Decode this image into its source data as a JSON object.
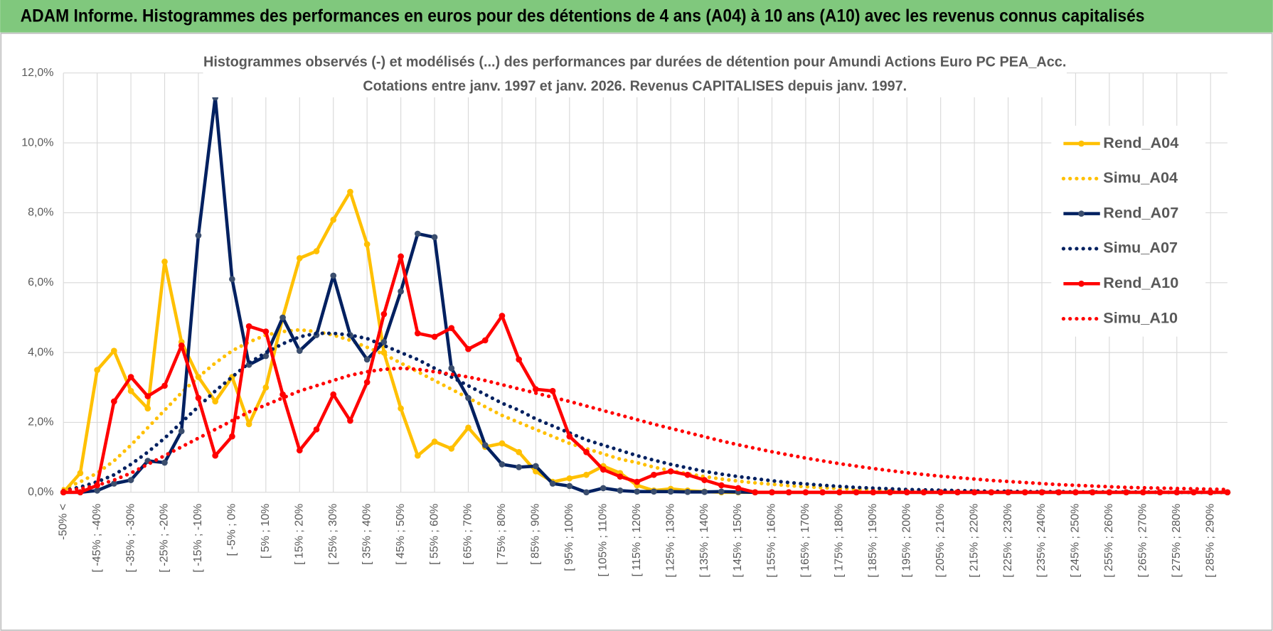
{
  "chart_data": {
    "type": "line",
    "title": "ADAM Informe. Histogrammes des performances en euros pour des détentions de 4 ans (A04) à 10 ans (A10) avec les revenus connus capitalisés",
    "subtitle": [
      "Histogrammes observés (-) et modélisés (...) des performances par durées de détention pour Amundi Actions Euro PC PEA_Acc.",
      "Cotations entre janv. 1997 et janv. 2026. Revenus CAPITALISES depuis janv. 1997."
    ],
    "categories": [
      "-50% <",
      null,
      "[ -45% ; -40%",
      null,
      "[ -35% ; -30%",
      null,
      "[ -25% ; -20%",
      null,
      "[ -15% ; -10%",
      null,
      "[ -5% ; 0%",
      null,
      "[ 5% ; 10%",
      null,
      "[ 15% ; 20%",
      null,
      "[ 25% ; 30%",
      null,
      "[ 35% ; 40%",
      null,
      "[ 45% ; 50%",
      null,
      "[ 55% ; 60%",
      null,
      "[ 65% ; 70%",
      null,
      "[ 75% ; 80%",
      null,
      "[ 85% ; 90%",
      null,
      "[ 95% ; 100%",
      null,
      "[ 105% ; 110%",
      null,
      "[ 115% ; 120%",
      null,
      "[ 125% ; 130%",
      null,
      "[ 135% ; 140%",
      null,
      "[ 145% ; 150%",
      null,
      "[ 155% ; 160%",
      null,
      "[ 165% ; 170%",
      null,
      "[ 175% ; 180%",
      null,
      "[ 185% ; 190%",
      null,
      "[ 195% ; 200%",
      null,
      "[ 205% ; 210%",
      null,
      "[ 215% ; 220%",
      null,
      "[ 225% ; 230%",
      null,
      "[ 235% ; 240%",
      null,
      "[ 245% ; 250%",
      null,
      "[ 255% ; 260%",
      null,
      "[ 265% ; 270%",
      null,
      "[ 275% ; 280%",
      null,
      "[ 285% ; 290%",
      null
    ],
    "ylim": [
      0,
      12
    ],
    "yticks": [
      {
        "value": 0,
        "label": "0,0%"
      },
      {
        "value": 2,
        "label": "2,0%"
      },
      {
        "value": 4,
        "label": "4,0%"
      },
      {
        "value": 6,
        "label": "6,0%"
      },
      {
        "value": 8,
        "label": "8,0%"
      },
      {
        "value": 10,
        "label": "10,0%"
      },
      {
        "value": 12,
        "label": "12,0%"
      }
    ],
    "grid": true,
    "legend": "right",
    "series": [
      {
        "name": "Rend_A04",
        "color": "#ffc000",
        "line_style": "solid",
        "markers": true,
        "values": [
          0,
          0.55,
          3.5,
          4.05,
          2.9,
          2.4,
          6.6,
          4.3,
          3.3,
          2.6,
          3.3,
          1.95,
          3.0,
          5.0,
          6.7,
          6.9,
          7.8,
          8.6,
          7.1,
          4.0,
          2.4,
          1.05,
          1.45,
          1.25,
          1.85,
          1.3,
          1.4,
          1.15,
          0.6,
          0.3,
          0.4,
          0.5,
          0.75,
          0.55,
          0.2,
          0.05,
          0.1,
          0.05,
          0.02,
          0,
          0,
          0,
          0,
          0,
          0,
          0,
          0,
          0,
          0,
          0,
          0,
          0,
          0,
          0,
          0,
          0,
          0,
          0,
          0,
          0,
          0,
          0,
          0,
          0,
          0,
          0,
          0,
          0,
          0,
          0
        ]
      },
      {
        "name": "Simu_A04",
        "color": "#ffc000",
        "line_style": "dotted",
        "markers": false,
        "values": [
          0.1,
          0.3,
          0.55,
          0.9,
          1.35,
          1.85,
          2.35,
          2.85,
          3.3,
          3.7,
          4.05,
          4.3,
          4.5,
          4.6,
          4.65,
          4.6,
          4.5,
          4.35,
          4.15,
          3.95,
          3.7,
          3.45,
          3.2,
          2.95,
          2.7,
          2.45,
          2.2,
          2.0,
          1.8,
          1.6,
          1.4,
          1.25,
          1.1,
          0.95,
          0.85,
          0.72,
          0.62,
          0.53,
          0.45,
          0.38,
          0.32,
          0.27,
          0.23,
          0.19,
          0.16,
          0.13,
          0.11,
          0.09,
          0.08,
          0.06,
          0.05,
          0.04,
          0.03,
          0.03,
          0.02,
          0.02,
          0.02,
          0.01,
          0.01,
          0.01,
          0.01,
          0.01,
          0.01,
          0,
          0,
          0,
          0,
          0,
          0,
          0
        ]
      },
      {
        "name": "Rend_A07",
        "color": "#002060",
        "line_style": "solid",
        "markers": true,
        "values": [
          0,
          0,
          0.05,
          0.25,
          0.35,
          0.9,
          0.85,
          1.75,
          7.35,
          11.3,
          6.1,
          3.65,
          3.9,
          5.0,
          4.05,
          4.5,
          6.2,
          4.5,
          3.8,
          4.3,
          5.75,
          7.4,
          7.3,
          3.55,
          2.7,
          1.35,
          0.8,
          0.72,
          0.75,
          0.25,
          0.18,
          0,
          0.12,
          0.05,
          0.02,
          0.02,
          0.02,
          0.01,
          0.01,
          0.02,
          0.01,
          0,
          0,
          0,
          0,
          0,
          0,
          0,
          0,
          0,
          0,
          0,
          0,
          0,
          0,
          0,
          0,
          0,
          0,
          0,
          0,
          0,
          0,
          0,
          0,
          0,
          0,
          0,
          0,
          0
        ]
      },
      {
        "name": "Simu_A07",
        "color": "#002060",
        "line_style": "dotted",
        "markers": false,
        "values": [
          0.05,
          0.15,
          0.3,
          0.5,
          0.8,
          1.15,
          1.55,
          2.0,
          2.45,
          2.9,
          3.3,
          3.7,
          4.0,
          4.25,
          4.45,
          4.55,
          4.55,
          4.5,
          4.4,
          4.2,
          4.0,
          3.8,
          3.55,
          3.3,
          3.05,
          2.8,
          2.55,
          2.35,
          2.1,
          1.9,
          1.7,
          1.5,
          1.35,
          1.2,
          1.05,
          0.92,
          0.8,
          0.7,
          0.6,
          0.52,
          0.45,
          0.39,
          0.33,
          0.28,
          0.24,
          0.2,
          0.17,
          0.14,
          0.12,
          0.1,
          0.08,
          0.07,
          0.06,
          0.05,
          0.04,
          0.03,
          0.03,
          0.02,
          0.02,
          0.02,
          0.01,
          0.01,
          0.01,
          0.01,
          0.01,
          0,
          0,
          0,
          0,
          0
        ]
      },
      {
        "name": "Rend_A10",
        "color": "#ff0000",
        "line_style": "solid",
        "markers": true,
        "values": [
          0,
          0,
          0.2,
          2.6,
          3.3,
          2.75,
          3.05,
          4.2,
          2.7,
          1.05,
          1.6,
          4.75,
          4.6,
          2.8,
          1.2,
          1.8,
          2.8,
          2.05,
          3.15,
          5.1,
          6.75,
          4.55,
          4.45,
          4.7,
          4.1,
          4.35,
          5.05,
          3.8,
          2.95,
          2.9,
          1.6,
          1.15,
          0.65,
          0.45,
          0.3,
          0.5,
          0.6,
          0.5,
          0.35,
          0.2,
          0.12,
          0,
          0,
          0,
          0,
          0,
          0,
          0,
          0,
          0,
          0,
          0,
          0,
          0,
          0,
          0,
          0,
          0,
          0,
          0,
          0,
          0,
          0,
          0,
          0,
          0,
          0,
          0,
          0,
          0
        ]
      },
      {
        "name": "Simu_A10",
        "color": "#ff0000",
        "line_style": "dotted",
        "markers": false,
        "values": [
          0.05,
          0.1,
          0.2,
          0.35,
          0.55,
          0.8,
          1.05,
          1.3,
          1.55,
          1.8,
          2.05,
          2.3,
          2.5,
          2.7,
          2.9,
          3.05,
          3.2,
          3.35,
          3.45,
          3.52,
          3.55,
          3.52,
          3.45,
          3.38,
          3.3,
          3.2,
          3.08,
          2.96,
          2.84,
          2.72,
          2.6,
          2.47,
          2.34,
          2.21,
          2.08,
          1.95,
          1.83,
          1.71,
          1.59,
          1.47,
          1.36,
          1.26,
          1.16,
          1.07,
          0.98,
          0.9,
          0.82,
          0.75,
          0.68,
          0.62,
          0.56,
          0.51,
          0.46,
          0.42,
          0.38,
          0.34,
          0.31,
          0.28,
          0.25,
          0.22,
          0.2,
          0.18,
          0.16,
          0.14,
          0.13,
          0.12,
          0.11,
          0.1,
          0.09,
          0.08
        ]
      }
    ]
  }
}
